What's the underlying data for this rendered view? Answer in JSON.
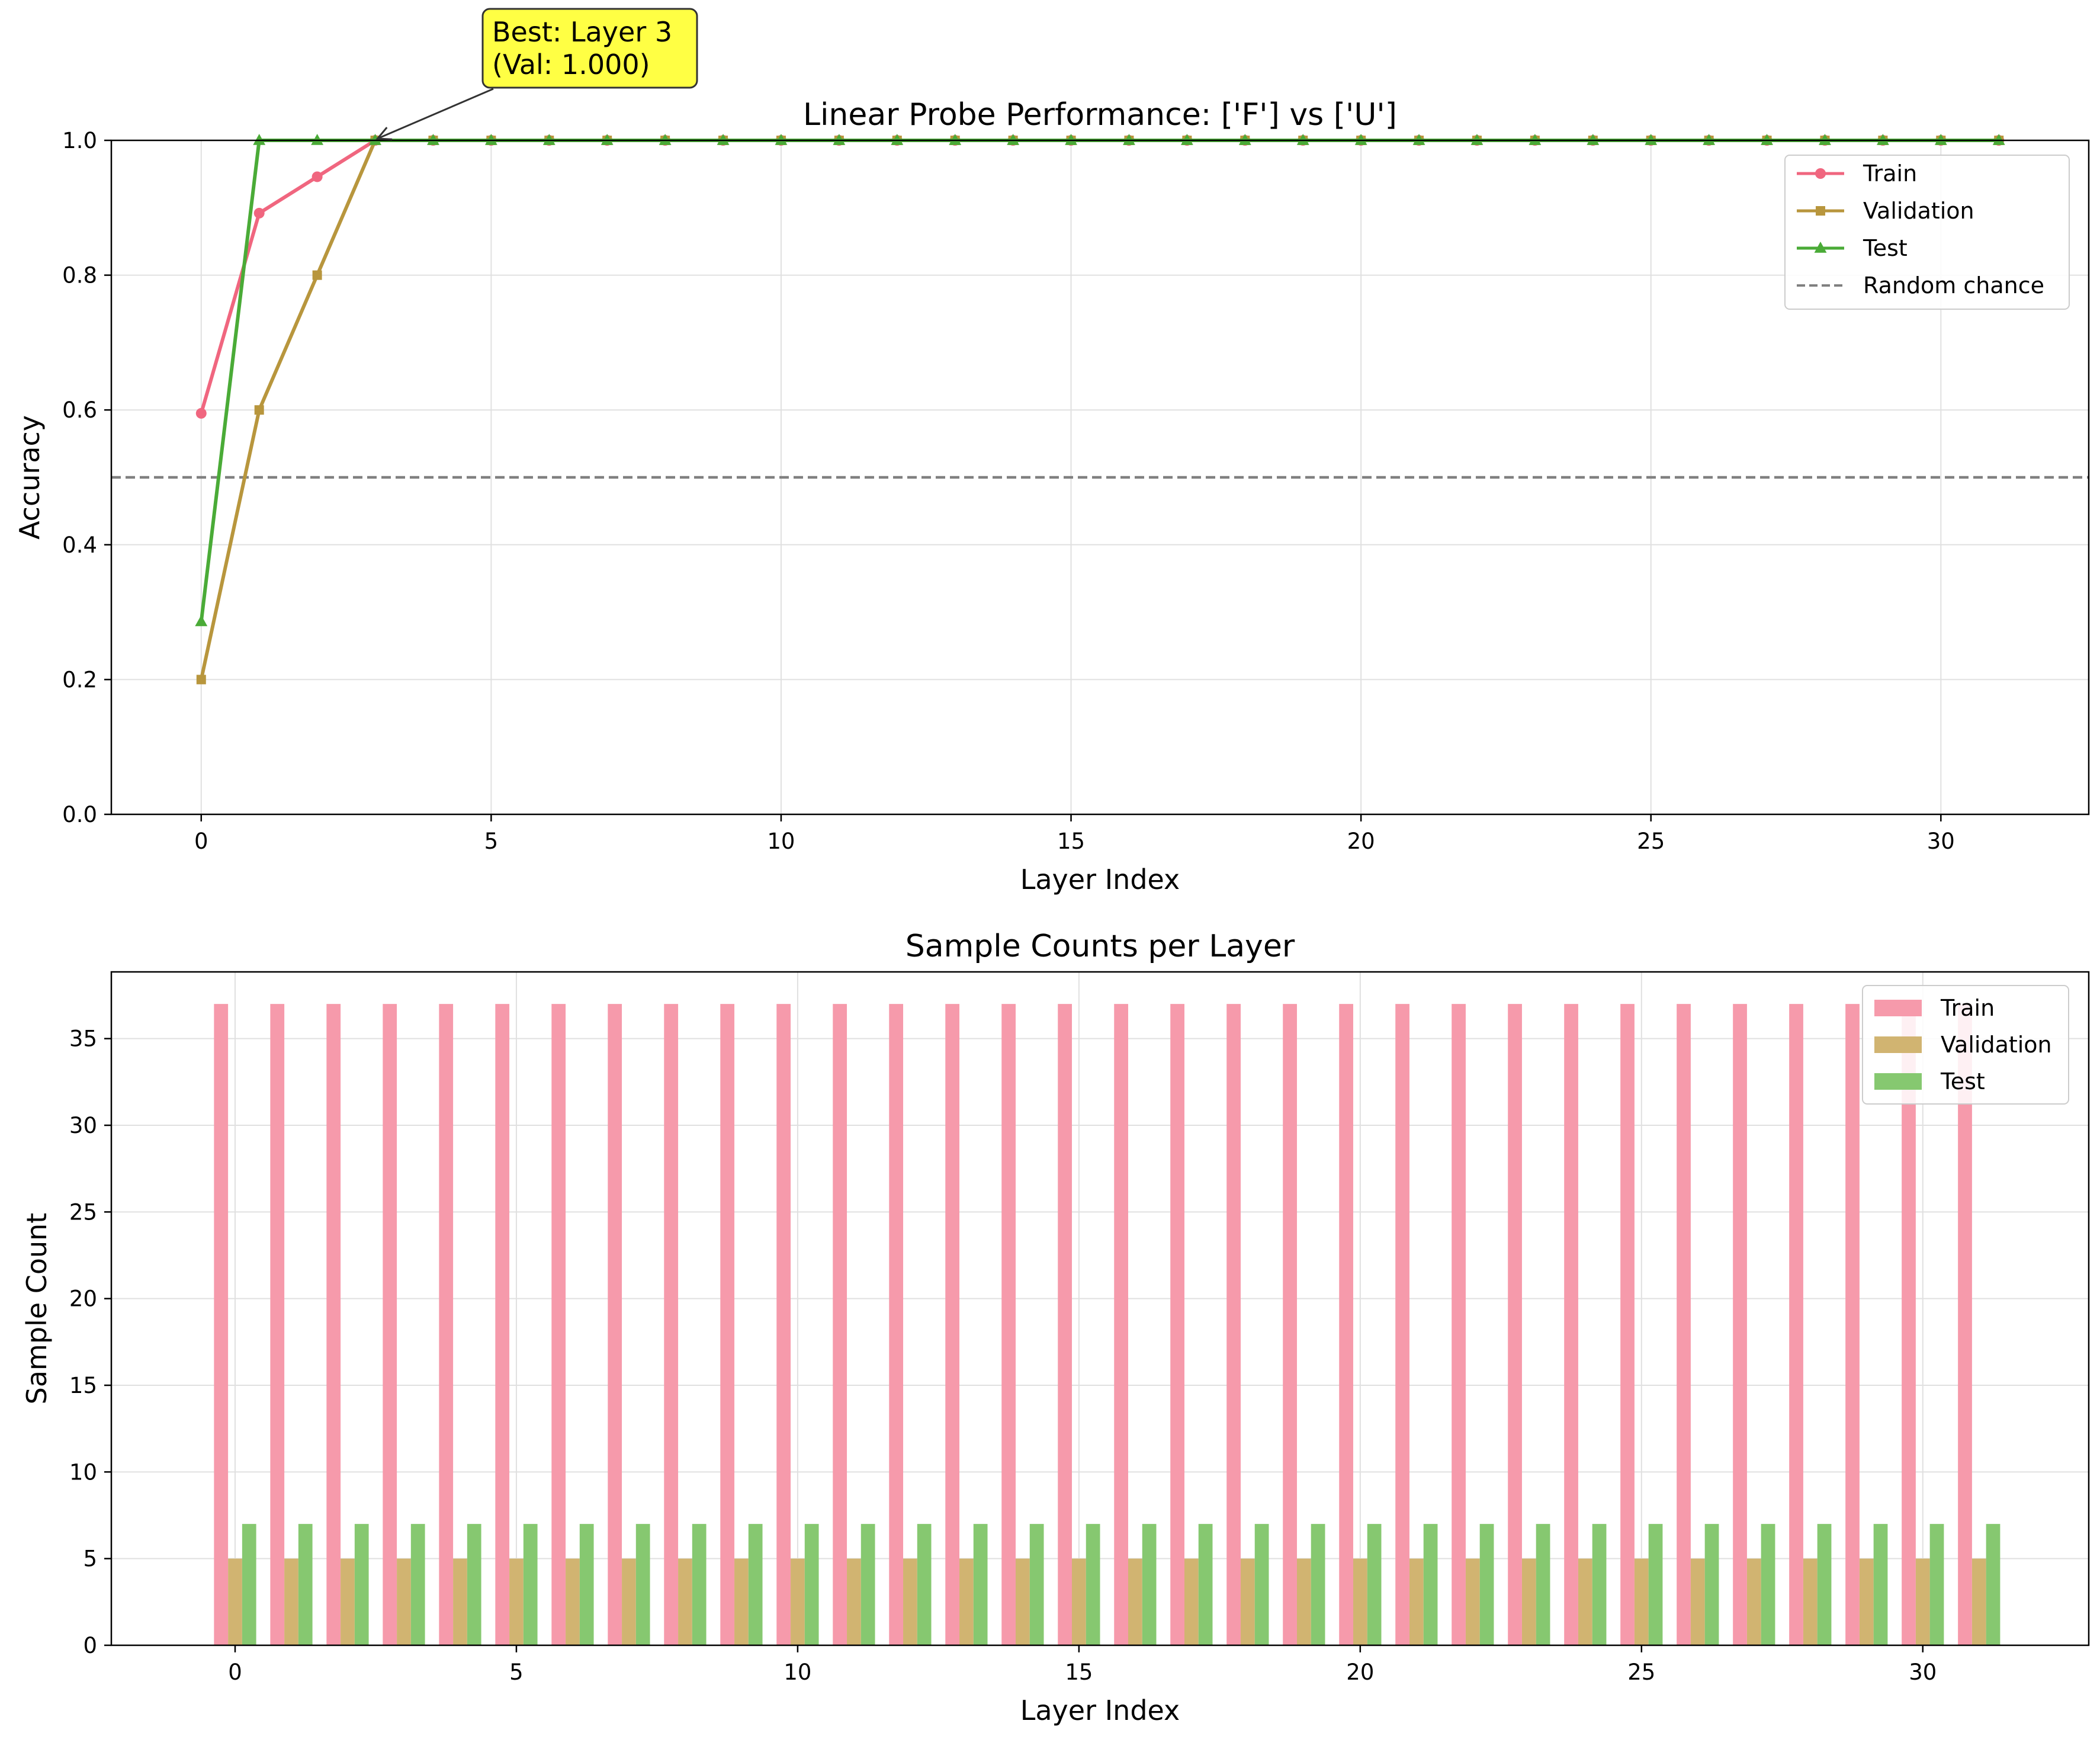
{
  "chart_data": [
    {
      "type": "line",
      "title": "Linear Probe Performance: ['F'] vs ['U']",
      "xlabel": "Layer Index",
      "ylabel": "Accuracy",
      "xlim": [
        -1.55,
        32.55
      ],
      "ylim": [
        0.0,
        1.0
      ],
      "xticks": [
        "0",
        "5",
        "10",
        "15",
        "20",
        "25",
        "30"
      ],
      "xtick_values": [
        0,
        5,
        10,
        15,
        20,
        25,
        30
      ],
      "yticks": [
        "0.0",
        "0.2",
        "0.4",
        "0.6",
        "0.8",
        "1.0"
      ],
      "ytick_values": [
        0.0,
        0.2,
        0.4,
        0.6,
        0.8,
        1.0
      ],
      "grid": true,
      "legend": "top-right",
      "x": [
        0,
        1,
        2,
        3,
        4,
        5,
        6,
        7,
        8,
        9,
        10,
        11,
        12,
        13,
        14,
        15,
        16,
        17,
        18,
        19,
        20,
        21,
        22,
        23,
        24,
        25,
        26,
        27,
        28,
        29,
        30,
        31
      ],
      "series": [
        {
          "name": "Train",
          "color": "#f0667f",
          "marker": "circle",
          "values": [
            0.595,
            0.892,
            0.946,
            1.0,
            1.0,
            1.0,
            1.0,
            1.0,
            1.0,
            1.0,
            1.0,
            1.0,
            1.0,
            1.0,
            1.0,
            1.0,
            1.0,
            1.0,
            1.0,
            1.0,
            1.0,
            1.0,
            1.0,
            1.0,
            1.0,
            1.0,
            1.0,
            1.0,
            1.0,
            1.0,
            1.0,
            1.0
          ]
        },
        {
          "name": "Validation",
          "color": "#b8963d",
          "marker": "square",
          "values": [
            0.2,
            0.6,
            0.8,
            1.0,
            1.0,
            1.0,
            1.0,
            1.0,
            1.0,
            1.0,
            1.0,
            1.0,
            1.0,
            1.0,
            1.0,
            1.0,
            1.0,
            1.0,
            1.0,
            1.0,
            1.0,
            1.0,
            1.0,
            1.0,
            1.0,
            1.0,
            1.0,
            1.0,
            1.0,
            1.0,
            1.0,
            1.0
          ]
        },
        {
          "name": "Test",
          "color": "#4aab37",
          "marker": "triangle",
          "values": [
            0.286,
            1.0,
            1.0,
            1.0,
            1.0,
            1.0,
            1.0,
            1.0,
            1.0,
            1.0,
            1.0,
            1.0,
            1.0,
            1.0,
            1.0,
            1.0,
            1.0,
            1.0,
            1.0,
            1.0,
            1.0,
            1.0,
            1.0,
            1.0,
            1.0,
            1.0,
            1.0,
            1.0,
            1.0,
            1.0,
            1.0,
            1.0
          ]
        }
      ],
      "reference_line": {
        "name": "Random chance",
        "y": 0.5,
        "color": "#808080",
        "style": "dashed"
      },
      "annotation": {
        "line1": "Best: Layer 3",
        "line2": "(Val: 1.000)",
        "x": 3,
        "y": 1.0,
        "box_color": "#ffff44"
      }
    },
    {
      "type": "bar",
      "title": "Sample Counts per Layer",
      "xlabel": "Layer Index",
      "ylabel": "Sample Count",
      "xlim": [
        -2.2,
        32.95
      ],
      "ylim": [
        0,
        38.85
      ],
      "xticks": [
        "0",
        "5",
        "10",
        "15",
        "20",
        "25",
        "30"
      ],
      "xtick_values": [
        0,
        5,
        10,
        15,
        20,
        25,
        30
      ],
      "yticks": [
        "0",
        "5",
        "10",
        "15",
        "20",
        "25",
        "30",
        "35"
      ],
      "ytick_values": [
        0,
        5,
        10,
        15,
        20,
        25,
        30,
        35
      ],
      "grid": true,
      "legend": "top-right",
      "bar_width": 0.25,
      "categories": [
        0,
        1,
        2,
        3,
        4,
        5,
        6,
        7,
        8,
        9,
        10,
        11,
        12,
        13,
        14,
        15,
        16,
        17,
        18,
        19,
        20,
        21,
        22,
        23,
        24,
        25,
        26,
        27,
        28,
        29,
        30,
        31
      ],
      "series": [
        {
          "name": "Train",
          "color": "#f69aab",
          "values": [
            37,
            37,
            37,
            37,
            37,
            37,
            37,
            37,
            37,
            37,
            37,
            37,
            37,
            37,
            37,
            37,
            37,
            37,
            37,
            37,
            37,
            37,
            37,
            37,
            37,
            37,
            37,
            37,
            37,
            37,
            37,
            37
          ]
        },
        {
          "name": "Validation",
          "color": "#d1b471",
          "values": [
            5,
            5,
            5,
            5,
            5,
            5,
            5,
            5,
            5,
            5,
            5,
            5,
            5,
            5,
            5,
            5,
            5,
            5,
            5,
            5,
            5,
            5,
            5,
            5,
            5,
            5,
            5,
            5,
            5,
            5,
            5,
            5
          ]
        },
        {
          "name": "Test",
          "color": "#86c870",
          "values": [
            7,
            7,
            7,
            7,
            7,
            7,
            7,
            7,
            7,
            7,
            7,
            7,
            7,
            7,
            7,
            7,
            7,
            7,
            7,
            7,
            7,
            7,
            7,
            7,
            7,
            7,
            7,
            7,
            7,
            7,
            7,
            7
          ]
        }
      ]
    }
  ]
}
